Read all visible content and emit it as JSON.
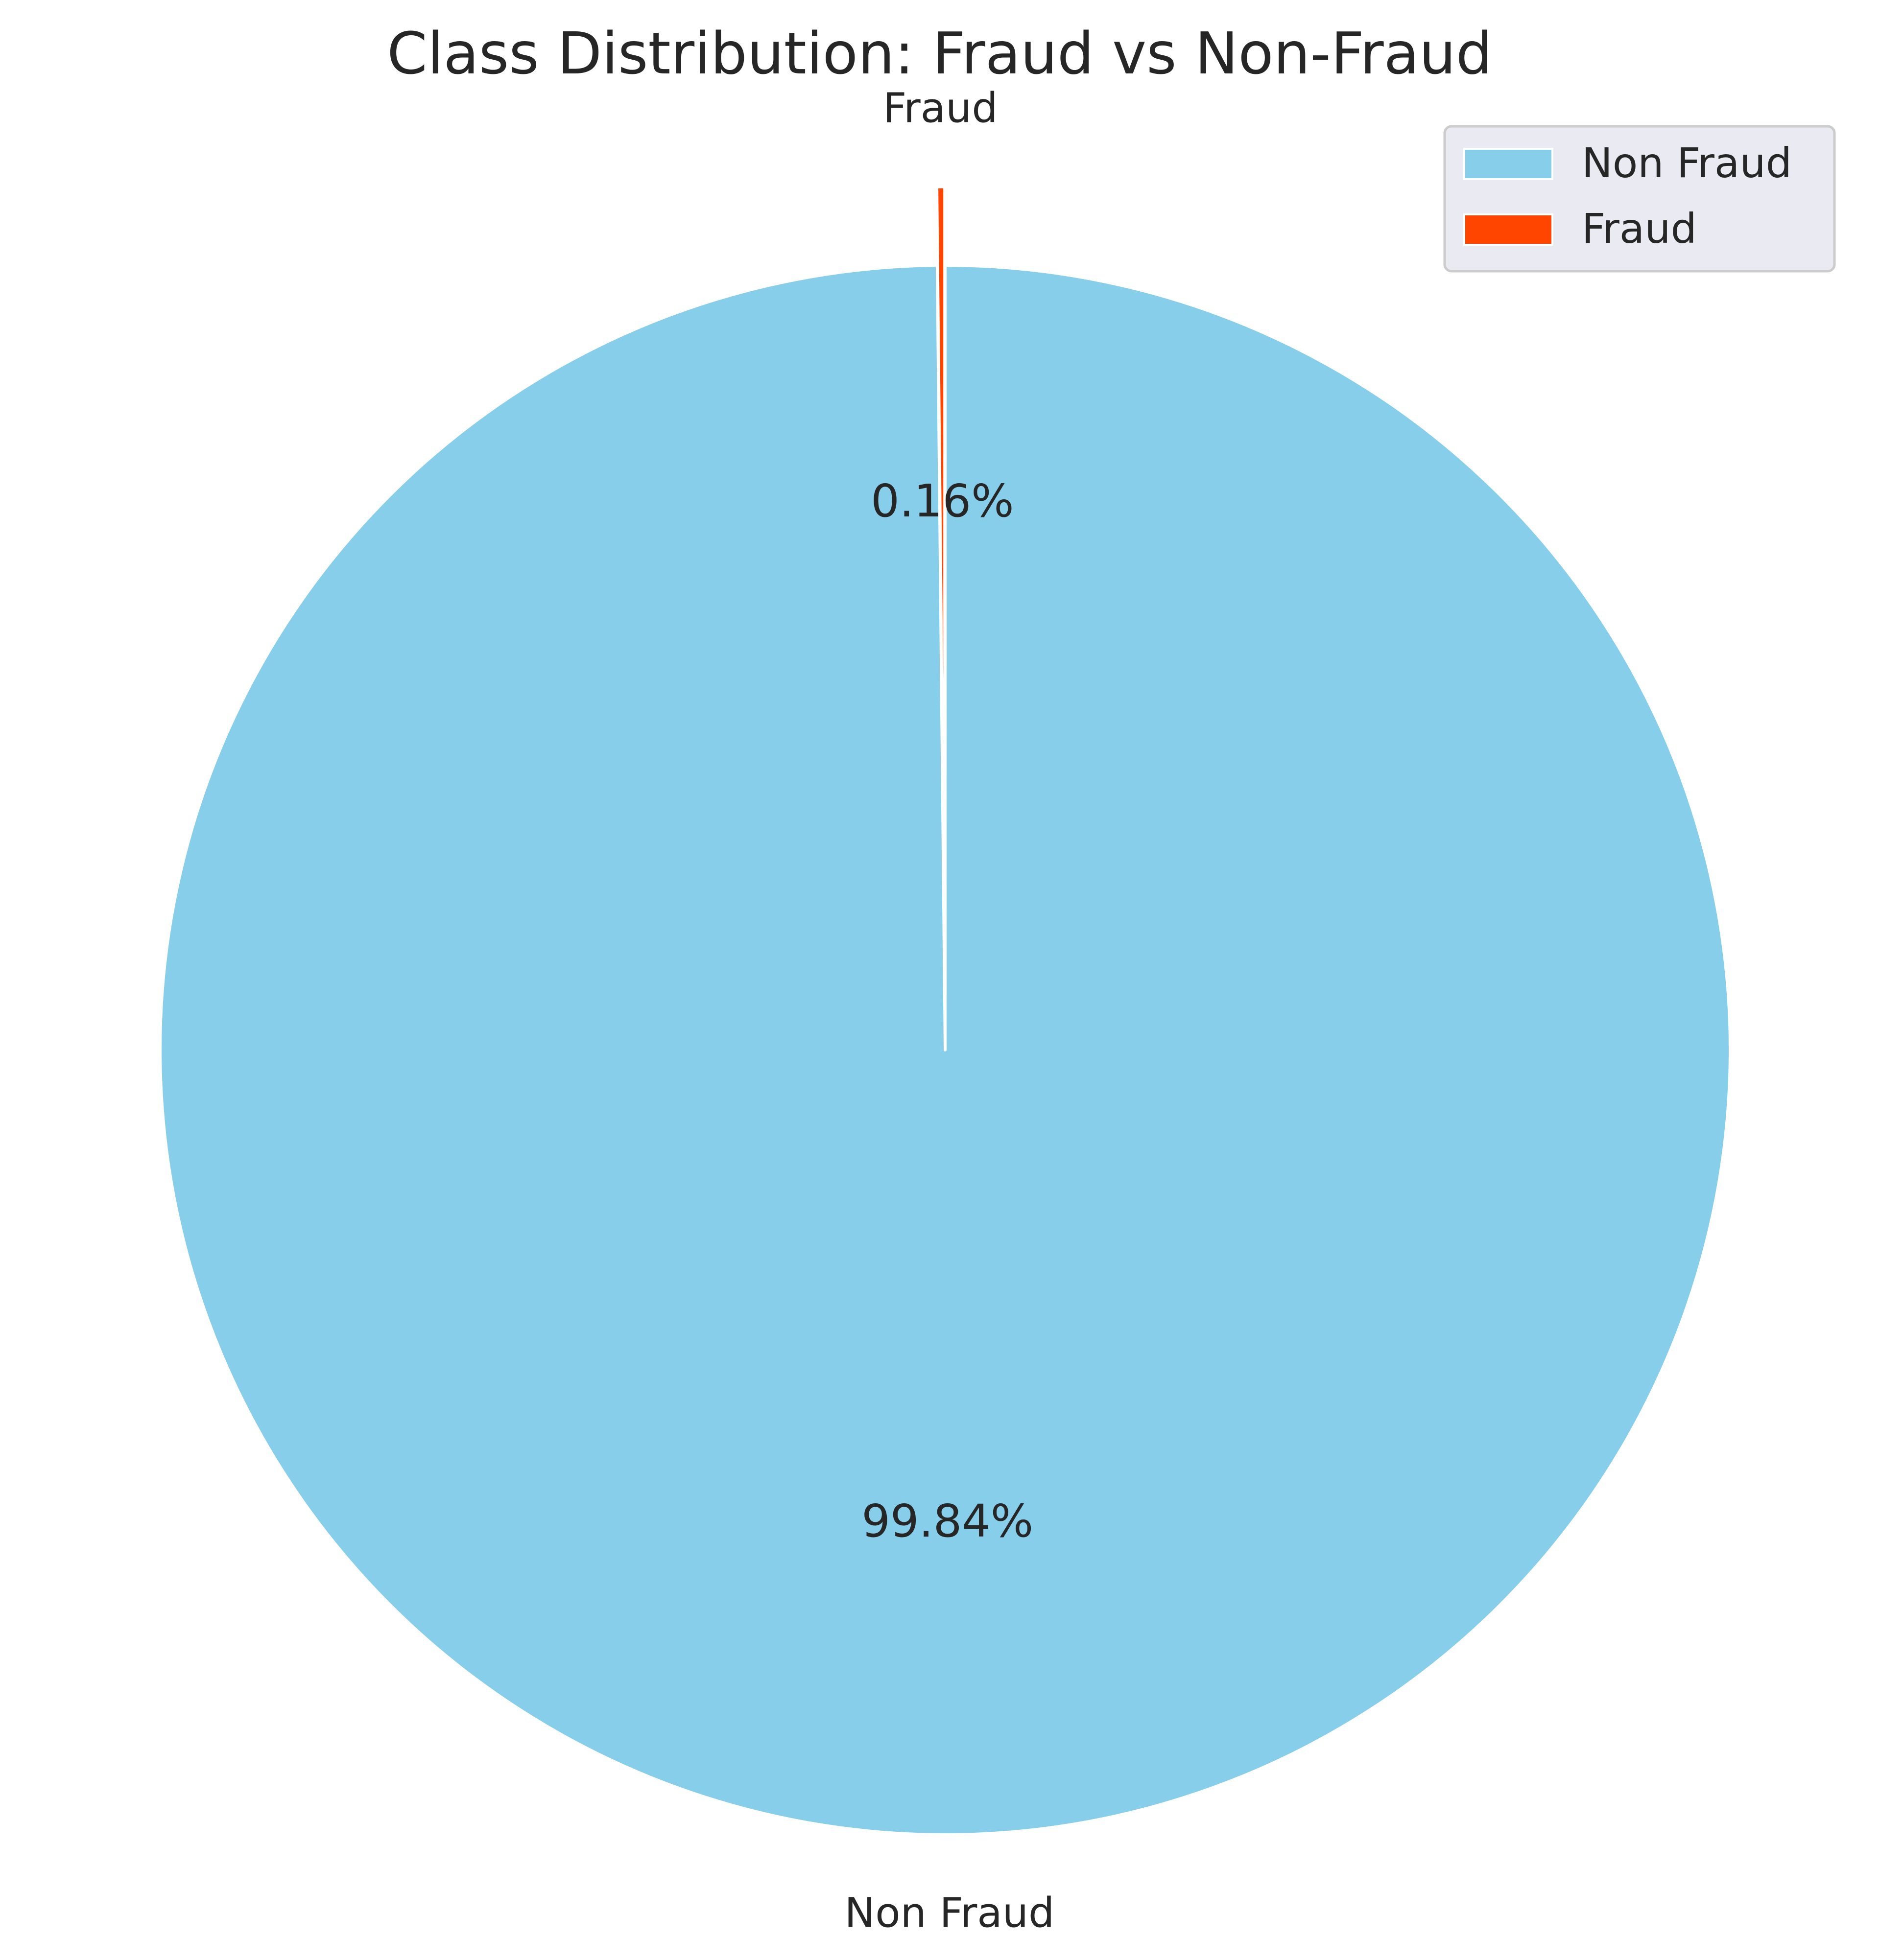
{
  "chart_data": {
    "type": "pie",
    "title": "Class Distribution: Fraud vs Non-Fraud",
    "slices": [
      {
        "label": "Non Fraud",
        "value": 99.84,
        "pct_label": "99.84%",
        "color": "#87CEEB",
        "explode": 0
      },
      {
        "label": "Fraud",
        "value": 0.16,
        "pct_label": "0.16%",
        "color": "#FF4500",
        "explode": 0.1
      }
    ],
    "legend": {
      "position": "top-right",
      "entries": [
        "Non Fraud",
        "Fraud"
      ]
    },
    "start_angle_deg": 90,
    "direction": "clockwise"
  }
}
